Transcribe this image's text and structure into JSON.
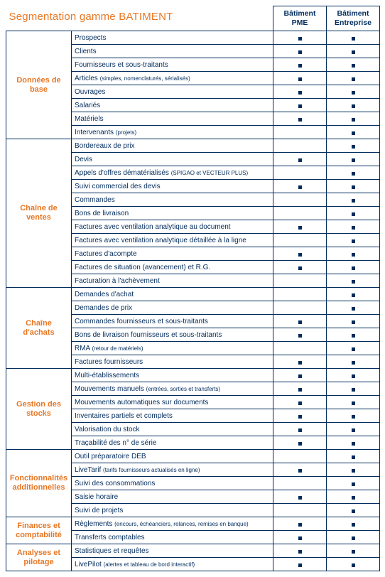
{
  "title": "Segmentation gamme BATIMENT",
  "columns": [
    {
      "label_line1": "Bâtiment",
      "label_line2": "PME"
    },
    {
      "label_line1": "Bâtiment",
      "label_line2": "Entreprise"
    }
  ],
  "col_widths": {
    "section": 92,
    "row": 284,
    "check": 75
  },
  "colors": {
    "border": "#002b5c",
    "section_text": "#e77724",
    "row_text": "#002b5c",
    "header_text": "#002b5c",
    "marker": "#002b5c",
    "background": "#ffffff"
  },
  "fontsize": {
    "title": 15,
    "header": 10.5,
    "section": 11,
    "row": 10,
    "note": 8
  },
  "sections": [
    {
      "name": "Données de base",
      "rows": [
        {
          "label": "Prospects",
          "pme": true,
          "ent": true
        },
        {
          "label": "Clients",
          "pme": true,
          "ent": true
        },
        {
          "label": "Fournisseurs et sous-traitants",
          "pme": true,
          "ent": true
        },
        {
          "label": "Articles",
          "note": "(simples, nomenclaturés, sérialisés)",
          "pme": true,
          "ent": true
        },
        {
          "label": "Ouvrages",
          "pme": true,
          "ent": true
        },
        {
          "label": "Salariés",
          "pme": true,
          "ent": true
        },
        {
          "label": "Matériels",
          "pme": true,
          "ent": true
        },
        {
          "label": "Intervenants",
          "note": "(projets)",
          "pme": false,
          "ent": true
        }
      ]
    },
    {
      "name": "Chaîne de ventes",
      "rows": [
        {
          "label": "Bordereaux de prix",
          "pme": false,
          "ent": true
        },
        {
          "label": "Devis",
          "pme": true,
          "ent": true
        },
        {
          "label": "Appels d'offres dématérialisés",
          "note": "(SPIGAO et VECTEUR PLUS)",
          "pme": false,
          "ent": true
        },
        {
          "label": "Suivi commercial des devis",
          "pme": true,
          "ent": true
        },
        {
          "label": "Commandes",
          "pme": false,
          "ent": true
        },
        {
          "label": "Bons de livraison",
          "pme": false,
          "ent": true
        },
        {
          "label": "Factures avec ventilation analytique au document",
          "pme": true,
          "ent": true
        },
        {
          "label": "Factures avec ventilation analytique détaillée à la ligne",
          "pme": false,
          "ent": true
        },
        {
          "label": "Factures d'acompte",
          "pme": true,
          "ent": true
        },
        {
          "label": "Factures de situation (avancement) et R.G.",
          "pme": true,
          "ent": true
        },
        {
          "label": "Facturation à l'achèvement",
          "pme": false,
          "ent": true
        }
      ]
    },
    {
      "name": "Chaîne d'achats",
      "rows": [
        {
          "label": "Demandes d'achat",
          "pme": false,
          "ent": true
        },
        {
          "label": "Demandes de prix",
          "pme": false,
          "ent": true
        },
        {
          "label": "Commandes fournisseurs et sous-traitants",
          "pme": true,
          "ent": true
        },
        {
          "label": "Bons de livraison fournisseurs et sous-traitants",
          "pme": true,
          "ent": true
        },
        {
          "label": "RMA",
          "note": "(retour de matériels)",
          "pme": false,
          "ent": true
        },
        {
          "label": "Factures fournisseurs",
          "pme": true,
          "ent": true
        }
      ]
    },
    {
      "name": "Gestion des stocks",
      "rows": [
        {
          "label": "Multi-établissements",
          "pme": true,
          "ent": true
        },
        {
          "label": "Mouvements manuels",
          "note": "(entrées, sorties et transferts)",
          "pme": true,
          "ent": true
        },
        {
          "label": "Mouvements automatiques sur documents",
          "pme": true,
          "ent": true
        },
        {
          "label": "Inventaires partiels et complets",
          "pme": true,
          "ent": true
        },
        {
          "label": "Valorisation du stock",
          "pme": true,
          "ent": true
        },
        {
          "label": "Traçabilité des n° de série",
          "pme": true,
          "ent": true
        }
      ]
    },
    {
      "name": "Fonctionnalités additionnelles",
      "rows": [
        {
          "label": "Outil préparatoire DEB",
          "pme": false,
          "ent": true
        },
        {
          "label": "LiveTarif",
          "note": "(tarifs fournisseurs actualisés en ligne)",
          "pme": true,
          "ent": true
        },
        {
          "label": "Suivi des consommations",
          "pme": false,
          "ent": true
        },
        {
          "label": "Saisie horaire",
          "pme": true,
          "ent": true
        },
        {
          "label": "Suivi de projets",
          "pme": false,
          "ent": true
        }
      ]
    },
    {
      "name": "Finances et comptabilité",
      "rows": [
        {
          "label": "Règlements",
          "note": "(encours, échéanciers, relances, remises en banque)",
          "pme": true,
          "ent": true
        },
        {
          "label": "Transferts comptables",
          "pme": true,
          "ent": true
        }
      ]
    },
    {
      "name": "Analyses et pilotage",
      "rows": [
        {
          "label": "Statistiques et requêtes",
          "pme": true,
          "ent": true
        },
        {
          "label": "LivePilot",
          "note": "(alertes et tableau de bord interactif)",
          "pme": true,
          "ent": true
        }
      ]
    }
  ]
}
